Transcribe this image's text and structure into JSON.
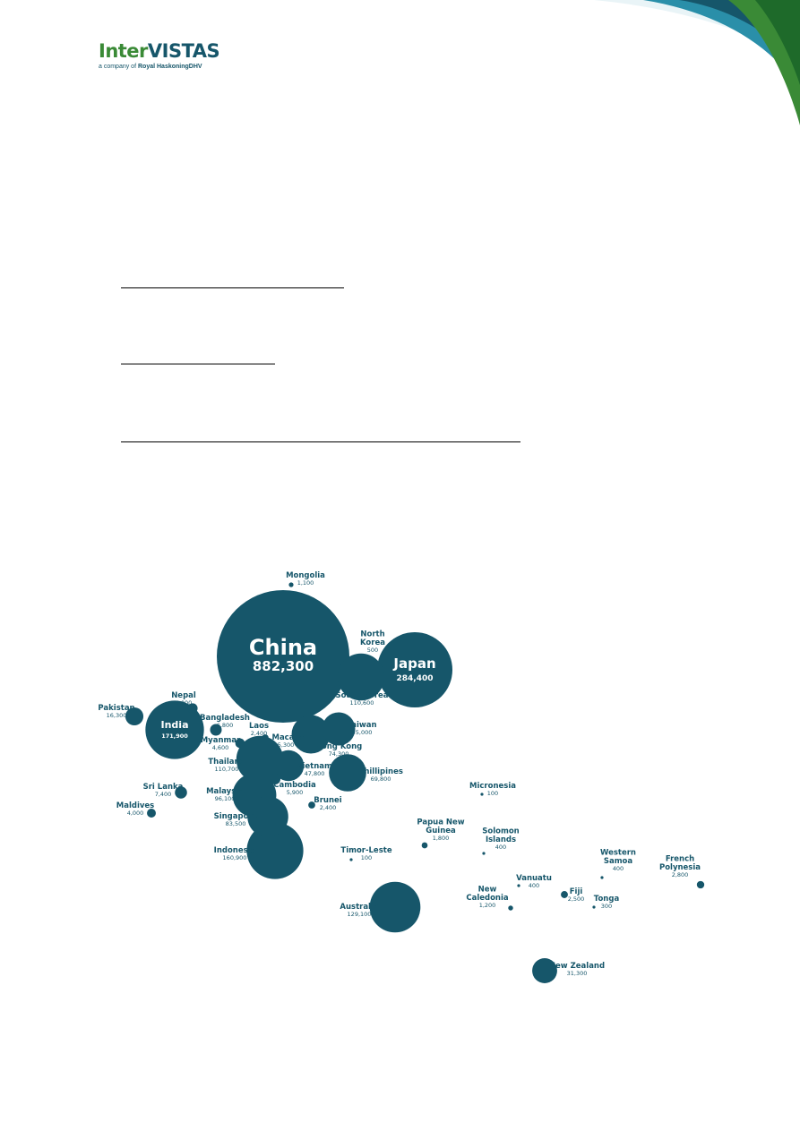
{
  "logo": {
    "part1": "Inter",
    "part2": "VISTAS",
    "tagline_prefix": "a company of",
    "tagline_company": "Royal HaskoningDHV"
  },
  "chart_data": {
    "type": "bubble",
    "bubbles": [
      {
        "name": "China",
        "value": 882300,
        "value_label": "882,300",
        "label_inside": true
      },
      {
        "name": "Japan",
        "value": 284400,
        "value_label": "284,400",
        "label_inside": true
      },
      {
        "name": "India",
        "value": 171900,
        "value_label": "171,900",
        "label_inside": true
      },
      {
        "name": "Indonesia",
        "value": 160900,
        "value_label": "160,900"
      },
      {
        "name": "Australia",
        "value": 129100,
        "value_label": "129,100"
      },
      {
        "name": "Thailand",
        "value": 110700,
        "value_label": "110,700"
      },
      {
        "name": "South Korea",
        "value": 110600,
        "value_label": "110,600"
      },
      {
        "name": "Malaysia",
        "value": 96100,
        "value_label": "96,100"
      },
      {
        "name": "Singapore",
        "value": 83500,
        "value_label": "83,500"
      },
      {
        "name": "Hong Kong",
        "value": 74300,
        "value_label": "74,300"
      },
      {
        "name": "Phillipines",
        "value": 69800,
        "value_label": "69,800"
      },
      {
        "name": "Taiwan",
        "value": 55000,
        "value_label": "55,000"
      },
      {
        "name": "Vietnam",
        "value": 47800,
        "value_label": "47,800"
      },
      {
        "name": "New Zealand",
        "value": 31300,
        "value_label": "31,300"
      },
      {
        "name": "Pakistan",
        "value": 16300,
        "value_label": "16,300"
      },
      {
        "name": "Sri Lanka",
        "value": 7400,
        "value_label": "7,400"
      },
      {
        "name": "Bangladesh",
        "value": 6800,
        "value_label": "6,800"
      },
      {
        "name": "Cambodia",
        "value": 5900,
        "value_label": "5,900"
      },
      {
        "name": "Macau",
        "value": 5300,
        "value_label": "5,300"
      },
      {
        "name": "Nepal",
        "value": 5000,
        "value_label": "5,000"
      },
      {
        "name": "Myanmar",
        "value": 4600,
        "value_label": "4,600"
      },
      {
        "name": "Maldives",
        "value": 4000,
        "value_label": "4,000"
      },
      {
        "name": "French Polynesia",
        "value": 2800,
        "value_label": "2,800"
      },
      {
        "name": "Fiji",
        "value": 2500,
        "value_label": "2,500"
      },
      {
        "name": "Laos",
        "value": 2400,
        "value_label": "2,400"
      },
      {
        "name": "Brunei",
        "value": 2400,
        "value_label": "2,400"
      },
      {
        "name": "Papua New Guinea",
        "value": 1800,
        "value_label": "1,800"
      },
      {
        "name": "New Caledonia",
        "value": 1200,
        "value_label": "1,200"
      },
      {
        "name": "Mongolia",
        "value": 1100,
        "value_label": "1,100"
      },
      {
        "name": "North Korea",
        "value": 500,
        "value_label": "500"
      },
      {
        "name": "Solomon Islands",
        "value": 400,
        "value_label": "400"
      },
      {
        "name": "Vanuatu",
        "value": 400,
        "value_label": "400"
      },
      {
        "name": "Western Samoa",
        "value": 400,
        "value_label": "400"
      },
      {
        "name": "Tonga",
        "value": 300,
        "value_label": "300"
      },
      {
        "name": "Micronesia",
        "value": 100,
        "value_label": "100"
      },
      {
        "name": "Timor-Leste",
        "value": 100,
        "value_label": "100"
      }
    ],
    "colors": {
      "bubble": "#16566a",
      "label": "#16566a",
      "accent_green": "#3a8a36"
    }
  }
}
